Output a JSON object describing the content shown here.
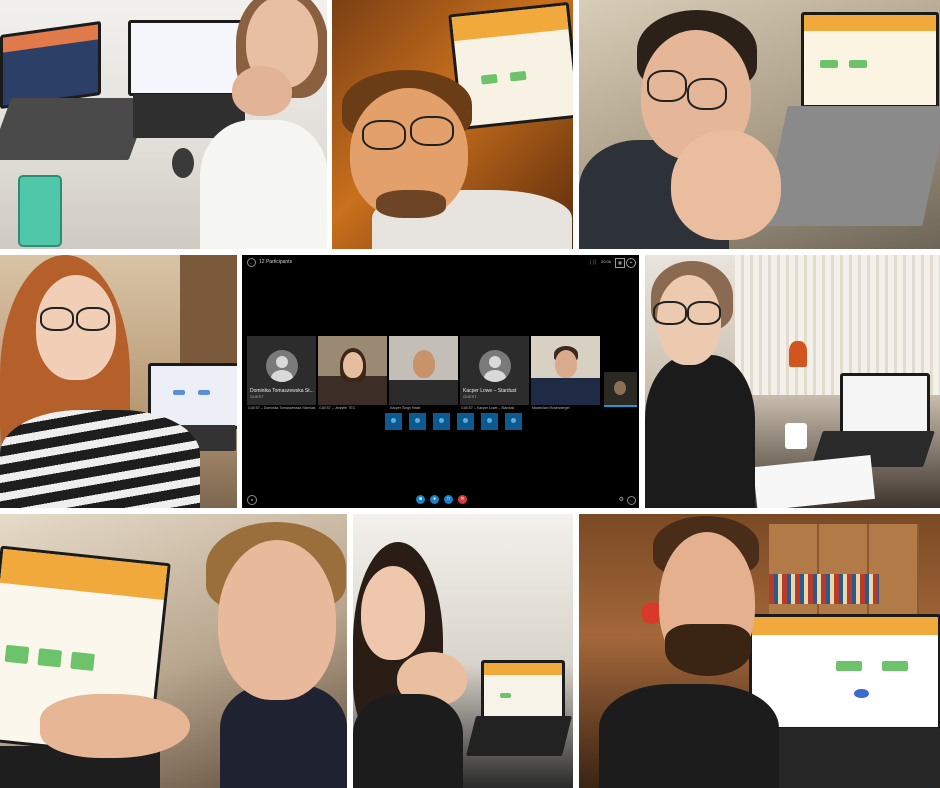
{
  "call": {
    "participants_title": "12 Participants",
    "time": "00:06",
    "signal": "│││",
    "back_icon": "back-arrow-icon",
    "tiles": [
      {
        "big_name": "Dominika Tomaszewska St...",
        "sub": "GUEST",
        "caption": "GUEST – Dominika Tomaszewska Stardust",
        "video": false
      },
      {
        "big_name": "",
        "sub": "",
        "caption": "GUEST – Jennifer TEC",
        "video": true
      },
      {
        "big_name": "",
        "sub": "",
        "caption": "Kacper Singh Rafał",
        "video": true
      },
      {
        "big_name": "Kacper Lowe – Stardust",
        "sub": "GUEST",
        "caption": "GUEST – Kacper Lowe – Stardust",
        "video": false
      },
      {
        "big_name": "",
        "sub": "",
        "caption": "Maximilian Rosenberger",
        "video": true
      }
    ],
    "controls": [
      {
        "name": "camera",
        "icon": "video-camera-icon",
        "glyph": "■"
      },
      {
        "name": "mic",
        "icon": "microphone-icon",
        "glyph": "●"
      },
      {
        "name": "share",
        "icon": "share-screen-icon",
        "glyph": "□"
      },
      {
        "name": "hangup",
        "icon": "hang-up-icon",
        "glyph": "✕"
      }
    ],
    "small_tile_count": 6
  },
  "colors": {
    "call_bg": "#000000",
    "call_blue": "#1a80c8",
    "hangup_red": "#d93a3a",
    "slide_orange": "#f2a93b",
    "slide_green": "#6cc36a"
  }
}
